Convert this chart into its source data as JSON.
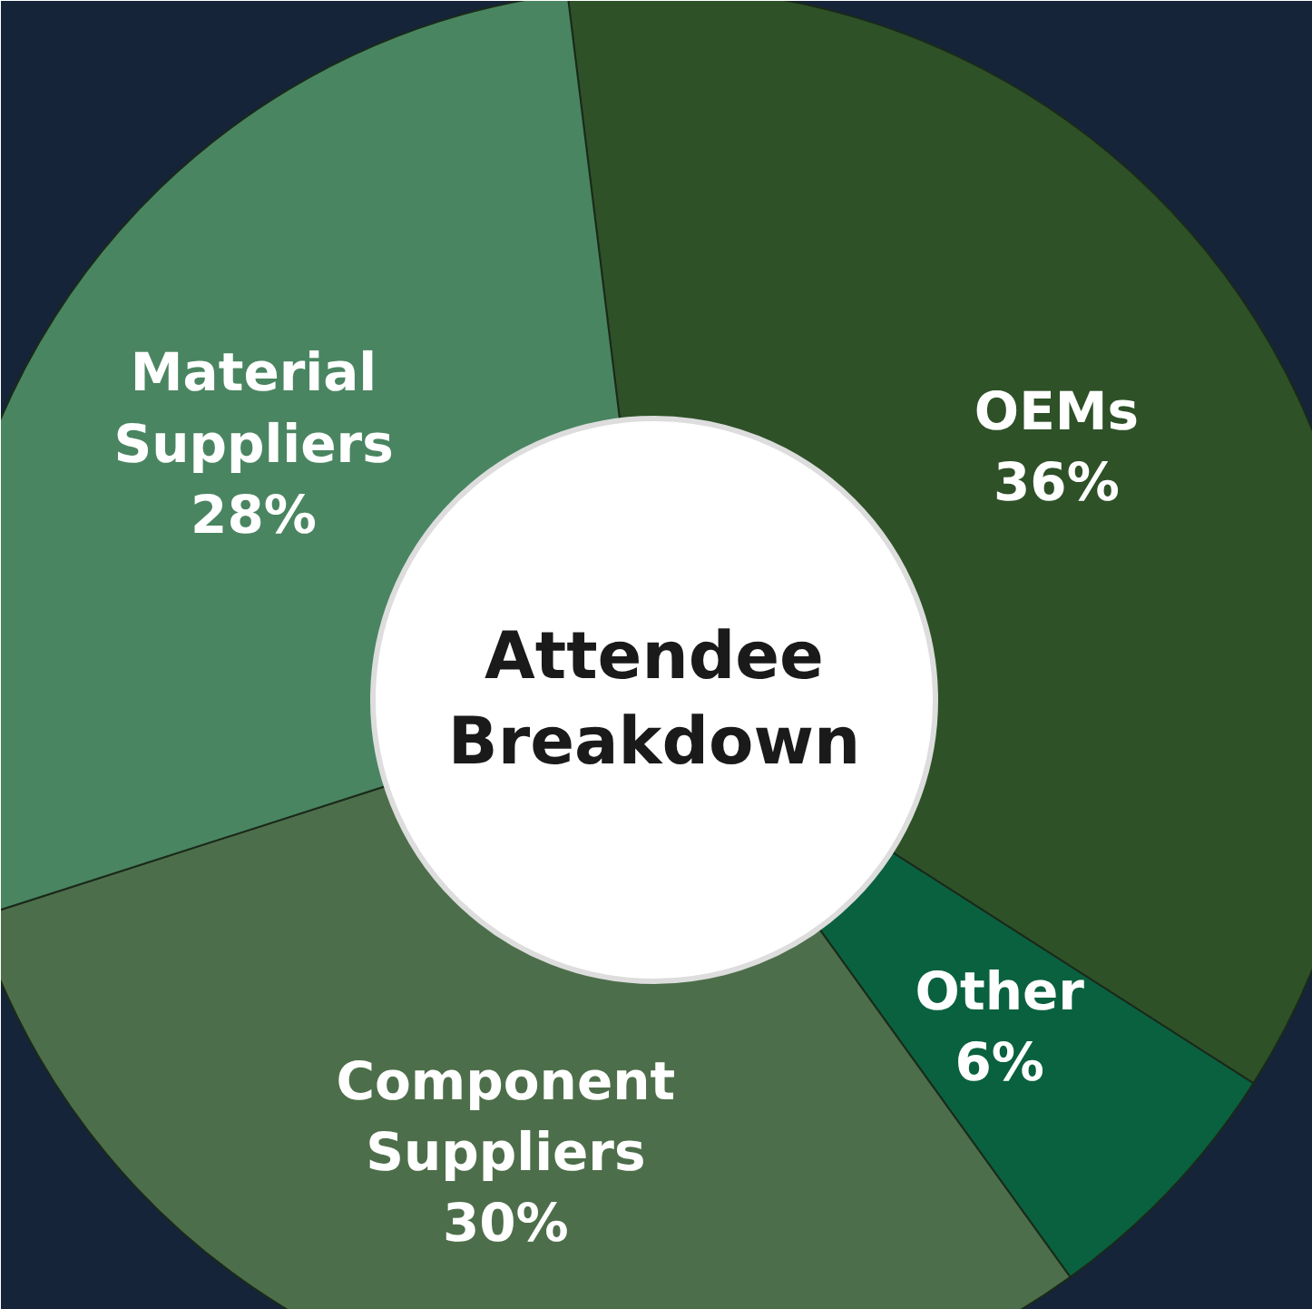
{
  "chart_data": {
    "type": "donut",
    "title": "Attendee\nBreakdown",
    "categories": [
      "OEMs",
      "Other",
      "Component Suppliers",
      "Material Suppliers"
    ],
    "values": [
      36,
      6,
      30,
      28
    ],
    "colors": [
      "#2e5128",
      "#0a6140",
      "#4d6e4a",
      "#4a8561"
    ],
    "value_labels": [
      "36%",
      "6%",
      "30%",
      "28%"
    ]
  }
}
